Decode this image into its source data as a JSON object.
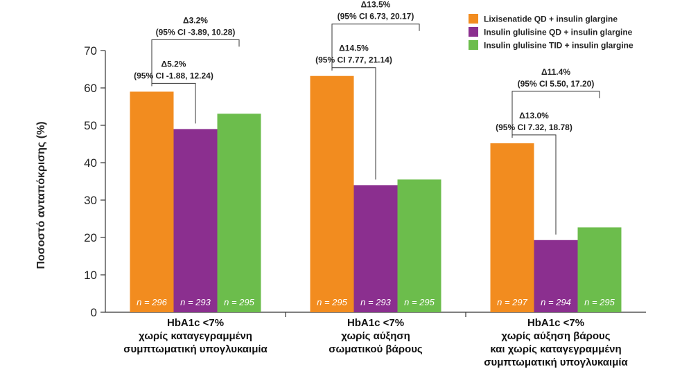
{
  "chart_data": {
    "type": "bar",
    "ylabel": "Ποσοστό ανταπόκρισης (%)",
    "ylim": [
      0,
      70
    ],
    "yticks": [
      0,
      10,
      20,
      30,
      40,
      50,
      60,
      70
    ],
    "categories": [
      [
        "HbA1c <7%",
        "χωρίς καταγεγραμμένη",
        "συμπτωματική υπογλυκαιμία"
      ],
      [
        "HbA1c <7%",
        "χωρίς αύξηση",
        "σωματικού βάρους"
      ],
      [
        "HbA1c <7%",
        "χωρίς αύξηση βάρους",
        "και χωρίς καταγεγραμμένη",
        "συμπτωματική υπογλυκαιμία"
      ]
    ],
    "series": [
      {
        "name": "Lixisenatide QD + insulin glargine",
        "color": "#f28c1f",
        "values": [
          59.0,
          63.2,
          45.2
        ],
        "n": [
          "n = 296",
          "n = 295",
          "n = 297"
        ]
      },
      {
        "name": "Insulin glulisine QD + insulin glargine",
        "color": "#8b2f8f",
        "values": [
          49.0,
          34.0,
          19.3
        ],
        "n": [
          "n = 293",
          "n = 293",
          "n = 294"
        ]
      },
      {
        "name": "Insulin glulisine TID + insulin glargine",
        "color": "#6cbd4c",
        "values": [
          53.1,
          35.5,
          22.7
        ],
        "n": [
          "n = 295",
          "n = 295",
          "n = 295"
        ]
      }
    ],
    "annotations": [
      {
        "group": 0,
        "from": 0,
        "to": 1,
        "level": 1,
        "delta": "Δ5.2%",
        "ci": "(95% CI -1.88, 12.24)"
      },
      {
        "group": 0,
        "from": 0,
        "to": 2,
        "level": 2,
        "delta": "Δ3.2%",
        "ci": "(95% CI -3.89, 10.28)"
      },
      {
        "group": 1,
        "from": 0,
        "to": 1,
        "level": 1,
        "delta": "Δ14.5%",
        "ci": "(95% CI 7.77, 21.14)"
      },
      {
        "group": 1,
        "from": 0,
        "to": 2,
        "level": 2,
        "delta": "Δ13.5%",
        "ci": "(95% CI 6.73, 20.17)"
      },
      {
        "group": 2,
        "from": 0,
        "to": 1,
        "level": 1,
        "delta": "Δ13.0%",
        "ci": "(95% CI 7.32, 18.78)"
      },
      {
        "group": 2,
        "from": 0,
        "to": 2,
        "level": 2,
        "delta": "Δ11.4%",
        "ci": "(95% CI 5.50, 17.20)"
      }
    ],
    "legend": "top-right"
  }
}
